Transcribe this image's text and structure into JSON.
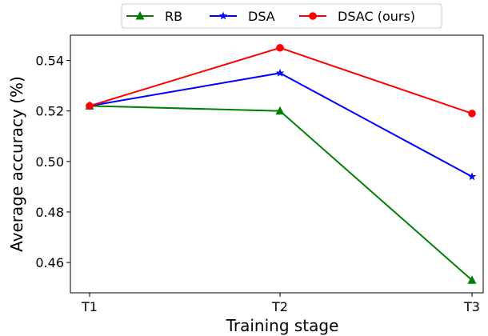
{
  "chart_data": {
    "type": "line",
    "categories": [
      "T1",
      "T2",
      "T3"
    ],
    "xlabel": "Training stage",
    "ylabel": "Average accuracy (%)",
    "ylim": [
      0.448,
      0.55
    ],
    "yticks": [
      0.46,
      0.48,
      0.5,
      0.52,
      0.54
    ],
    "ytick_labels": [
      "0.46",
      "0.48",
      "0.50",
      "0.52",
      "0.54"
    ],
    "grid": false,
    "legend": {
      "placement": "top-center-outside",
      "columns": 3
    },
    "series": [
      {
        "name": "RB",
        "values": [
          0.522,
          0.52,
          0.453
        ],
        "color": "#008000",
        "marker": "triangle"
      },
      {
        "name": "DSA",
        "values": [
          0.522,
          0.535,
          0.494
        ],
        "color": "#0000ff",
        "marker": "star"
      },
      {
        "name": "DSAC (ours)",
        "values": [
          0.522,
          0.545,
          0.519
        ],
        "color": "#ff0000",
        "marker": "circle"
      }
    ]
  }
}
